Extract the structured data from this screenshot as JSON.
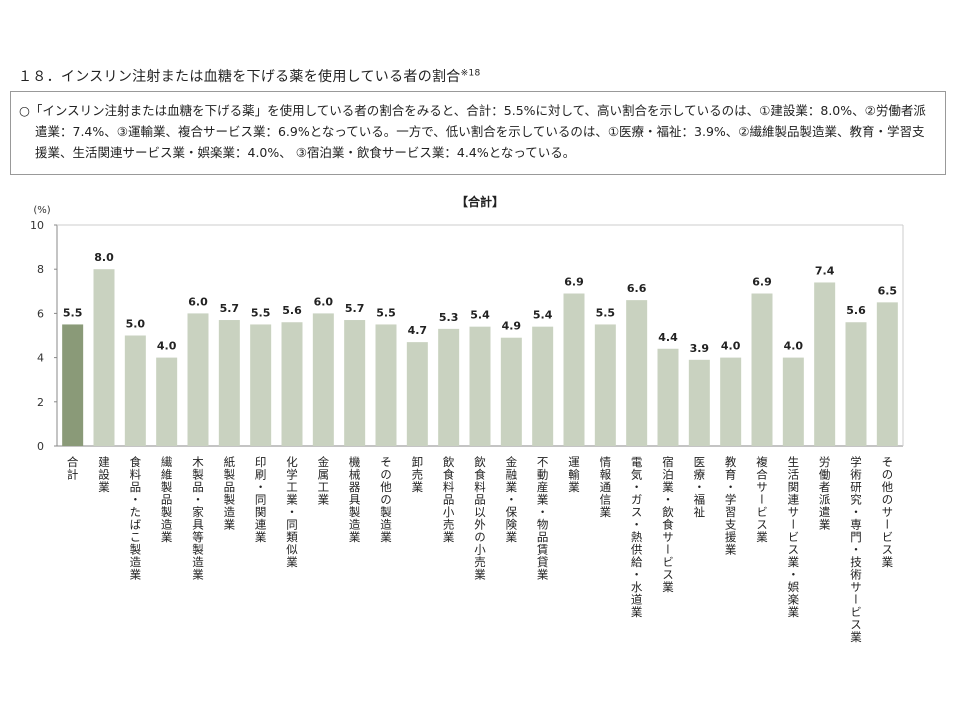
{
  "title": "１８．インスリン注射または血糖を下げる薬を使用している者の割合",
  "title_note": "※18",
  "summary": "○「インスリン注射または血糖を下げる薬」を使用している者の割合をみると、合計：5.5%に対して、高い割合を示しているのは、①建設業：8.0%、②労働者派遣業：7.4%、③運輸業、複合サービス業：6.9%となっている。一方で、低い割合を示しているのは、①医療・福祉：3.9%、②繊維製品製造業、教育・学習支援業、生活関連サービス業・娯楽業：4.0%、 ③宿泊業・飲食サービス業：4.4%となっている。",
  "chart_data": {
    "type": "bar",
    "title": "【合計】",
    "ylabel": "(%)",
    "xlabel": "",
    "ylim": [
      0,
      10
    ],
    "yticks": [
      "0",
      "2",
      "4",
      "6",
      "8",
      "10"
    ],
    "grid": false,
    "categories": [
      "合計",
      "建設業",
      "食料品・たばこ製造業",
      "繊維製品製造業",
      "木製品・家具等製造業",
      "紙製品製造業",
      "印刷・同関連業",
      "化学工業・同類似業",
      "金属工業",
      "機械器具製造業",
      "その他の製造業",
      "卸売業",
      "飲食料品小売業",
      "飲食料品以外の小売業",
      "金融業・保険業",
      "不動産業・物品賃貸業",
      "運輸業",
      "情報通信業",
      "電気・ガス・熱供給・水道業",
      "宿泊業・飲食サービス業",
      "医療・福祉",
      "教育・学習支援業",
      "複合サービス業",
      "生活関連サービス業・娯楽業",
      "労働者派遣業",
      "学術研究・専門・技術サービス業",
      "その他のサービス業"
    ],
    "values": [
      5.5,
      8.0,
      5.0,
      4.0,
      6.0,
      5.7,
      5.5,
      5.6,
      6.0,
      5.7,
      5.5,
      4.7,
      5.3,
      5.4,
      4.9,
      5.4,
      6.9,
      5.5,
      6.6,
      4.4,
      3.9,
      4.0,
      6.9,
      4.0,
      7.4,
      5.6,
      6.5
    ],
    "value_labels": [
      "5.5",
      "8.0",
      "5.0",
      "4.0",
      "6.0",
      "5.7",
      "5.5",
      "5.6",
      "6.0",
      "5.7",
      "5.5",
      "4.7",
      "5.3",
      "5.4",
      "4.9",
      "5.4",
      "6.9",
      "5.5",
      "6.6",
      "4.4",
      "3.9",
      "4.0",
      "6.9",
      "4.0",
      "7.4",
      "5.6",
      "6.5"
    ],
    "colors": {
      "total": "#8a9a78",
      "bar": "#c9d2c0",
      "axis": "#888888"
    }
  }
}
